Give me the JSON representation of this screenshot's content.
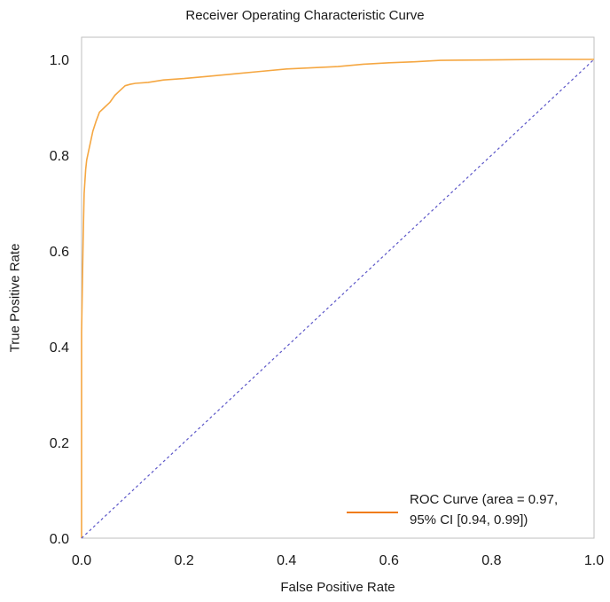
{
  "chart_data": {
    "type": "line",
    "title": "Receiver Operating Characteristic Curve",
    "xlabel": "False Positive Rate",
    "ylabel": "True Positive Rate",
    "xlim": [
      0.0,
      1.0
    ],
    "ylim": [
      0.0,
      1.0
    ],
    "xticks": [
      "0.0",
      "0.2",
      "0.4",
      "0.6",
      "0.8",
      "1.0"
    ],
    "yticks": [
      "0.0",
      "0.2",
      "0.4",
      "0.6",
      "0.8",
      "1.0"
    ],
    "grid": false,
    "legend_position": "bottom-right",
    "legend_text": "ROC Curve (area = 0.97,\n95% CI [0.94, 0.99])",
    "series": [
      {
        "name": "ROC Curve (area = 0.97, 95% CI [0.94, 0.99])",
        "color": "#f5a742",
        "style": "solid",
        "x": [
          0.0,
          0.0,
          0.003,
          0.005,
          0.008,
          0.01,
          0.014,
          0.018,
          0.022,
          0.028,
          0.035,
          0.045,
          0.055,
          0.065,
          0.075,
          0.085,
          0.095,
          0.105,
          0.13,
          0.16,
          0.2,
          0.25,
          0.3,
          0.35,
          0.4,
          0.5,
          0.55,
          0.6,
          0.65,
          0.7,
          0.8,
          0.9,
          0.95,
          1.0
        ],
        "y": [
          0.0,
          0.43,
          0.62,
          0.72,
          0.77,
          0.79,
          0.81,
          0.83,
          0.85,
          0.87,
          0.89,
          0.9,
          0.91,
          0.925,
          0.935,
          0.945,
          0.948,
          0.95,
          0.952,
          0.957,
          0.96,
          0.965,
          0.97,
          0.975,
          0.98,
          0.985,
          0.99,
          0.993,
          0.995,
          0.998,
          0.999,
          1.0,
          1.0,
          1.0
        ]
      },
      {
        "name": "",
        "color": "#5b56c8",
        "style": "dashed",
        "x": [
          0.0,
          1.0
        ],
        "y": [
          0.0,
          1.0
        ]
      }
    ]
  }
}
